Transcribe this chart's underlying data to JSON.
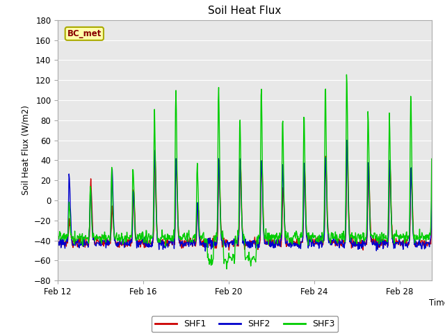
{
  "title": "Soil Heat Flux",
  "ylabel": "Soil Heat Flux (W/m2)",
  "xlabel": "Time",
  "ylim": [
    -80,
    180
  ],
  "yticks": [
    -80,
    -60,
    -40,
    -20,
    0,
    20,
    40,
    60,
    80,
    100,
    120,
    140,
    160,
    180
  ],
  "fig_facecolor": "#ffffff",
  "plot_bg": "#e8e8e8",
  "legend_label": "BC_met",
  "series_colors": {
    "SHF1": "#cc0000",
    "SHF2": "#0000cc",
    "SHF3": "#00cc00"
  },
  "line_width": 1.0,
  "xlim": [
    12,
    29.5
  ],
  "xtick_labels": [
    "Feb 12",
    "Feb 16",
    "Feb 20",
    "Feb 24",
    "Feb 28"
  ],
  "xtick_days": [
    12,
    16,
    20,
    24,
    28
  ]
}
